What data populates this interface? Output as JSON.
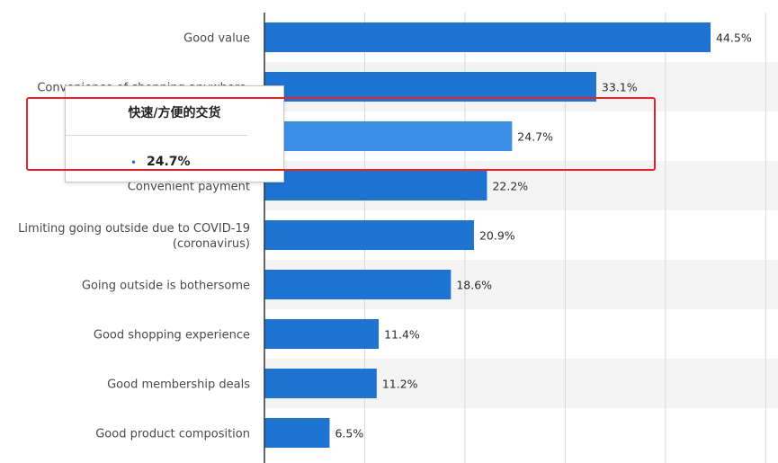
{
  "chart_data": {
    "type": "bar",
    "orientation": "horizontal",
    "categories": [
      "Good value",
      "Convenience of shopping anywhere,",
      "快速/方便的交货",
      "Convenient payment",
      "Limiting going outside due to COVID-19 (coronavirus)",
      "Going outside is bothersome",
      "Good shopping experience",
      "Good membership deals",
      "Good product composition"
    ],
    "category_lines": [
      [
        "Good value"
      ],
      [
        "Convenience of shopping anywhere,"
      ],
      [
        ""
      ],
      [
        "Convenient payment"
      ],
      [
        "Limiting going outside due to COVID-19",
        "(coronavirus)"
      ],
      [
        "Going outside is bothersome"
      ],
      [
        "Good shopping experience"
      ],
      [
        "Good membership deals"
      ],
      [
        "Good product composition"
      ]
    ],
    "values": [
      44.5,
      33.1,
      24.7,
      22.2,
      20.9,
      18.6,
      11.4,
      11.2,
      6.5
    ],
    "value_labels": [
      "44.5%",
      "33.1%",
      "24.7%",
      "22.2%",
      "20.9%",
      "18.6%",
      "11.4%",
      "11.2%",
      "6.5%"
    ],
    "xlim": [
      0,
      50
    ],
    "grid": true,
    "highlighted_index": 2
  },
  "tooltip": {
    "title": "快速/方便的交货",
    "bullet": "•",
    "value": "24.7%"
  },
  "colors": {
    "bar": "#1e74d2",
    "bar_highlight": "#3b8fe6",
    "highlight_box": "#e8232b",
    "band": "#f4f4f4",
    "grid": "#d9d9d9",
    "axis": "#333333"
  }
}
